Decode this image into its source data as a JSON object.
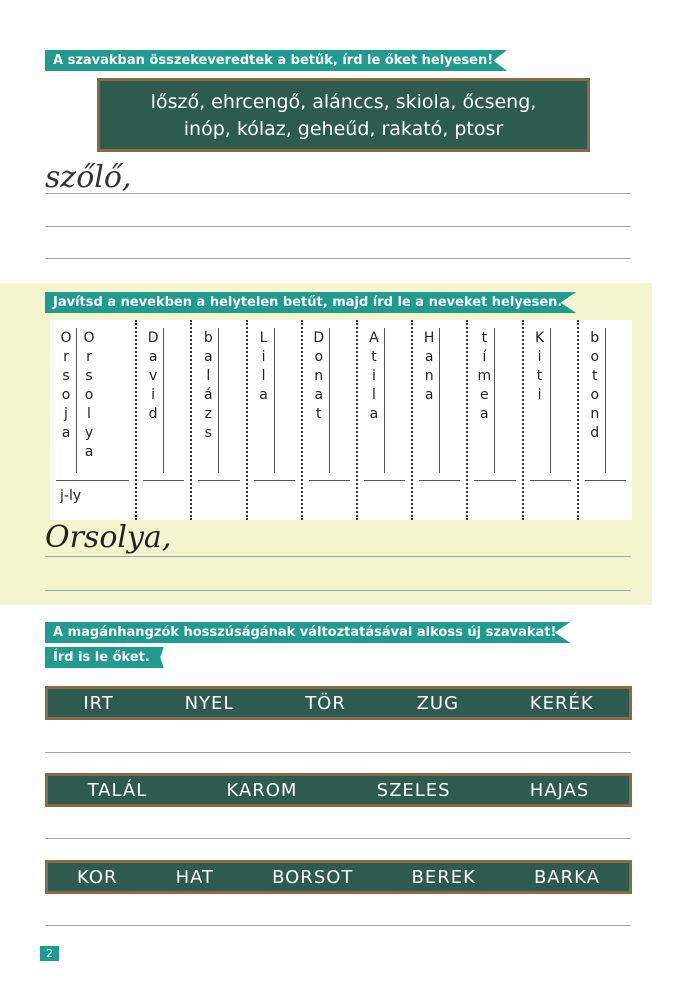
{
  "task1": {
    "instruction": "A szavakban összekeveredtek a betűk, írd le őket helyesen!",
    "board_line1": "lősző, ehrcengő, alánccs, skiola, őcseng,",
    "board_line2": "inóp, kólaz, geheűd, rakató, ptosr",
    "example": "szőlő,"
  },
  "task2": {
    "instruction": "Javítsd a nevekben a helytelen betűt, majd írd le a neveket helyesen.",
    "names": [
      {
        "wrong": "Orsoja",
        "right": "Orsolya",
        "note": "j-ly"
      },
      {
        "wrong": "David"
      },
      {
        "wrong": "balázs"
      },
      {
        "wrong": "Lila"
      },
      {
        "wrong": "Donat"
      },
      {
        "wrong": "Atila"
      },
      {
        "wrong": "Hana"
      },
      {
        "wrong": "tímea"
      },
      {
        "wrong": "Kiti"
      },
      {
        "wrong": "botond"
      }
    ],
    "example": "Orsolya,"
  },
  "task3": {
    "instruction_line1": "A magánhangzók hosszúságának változtatásával alkoss új szavakat!",
    "instruction_line2": "Írd is le őket.",
    "boards": [
      [
        "IRT",
        "NYEL",
        "TÖR",
        "ZUG",
        "KERÉK"
      ],
      [
        "TALÁL",
        "KAROM",
        "SZELES",
        "HAJAS"
      ],
      [
        "KOR",
        "HAT",
        "BORSOT",
        "BEREK",
        "BARKA"
      ]
    ]
  },
  "page_number": "2",
  "colors": {
    "accent": "#1f9b90",
    "board": "#2e5b50",
    "section_bg": "#f4f4cf"
  }
}
